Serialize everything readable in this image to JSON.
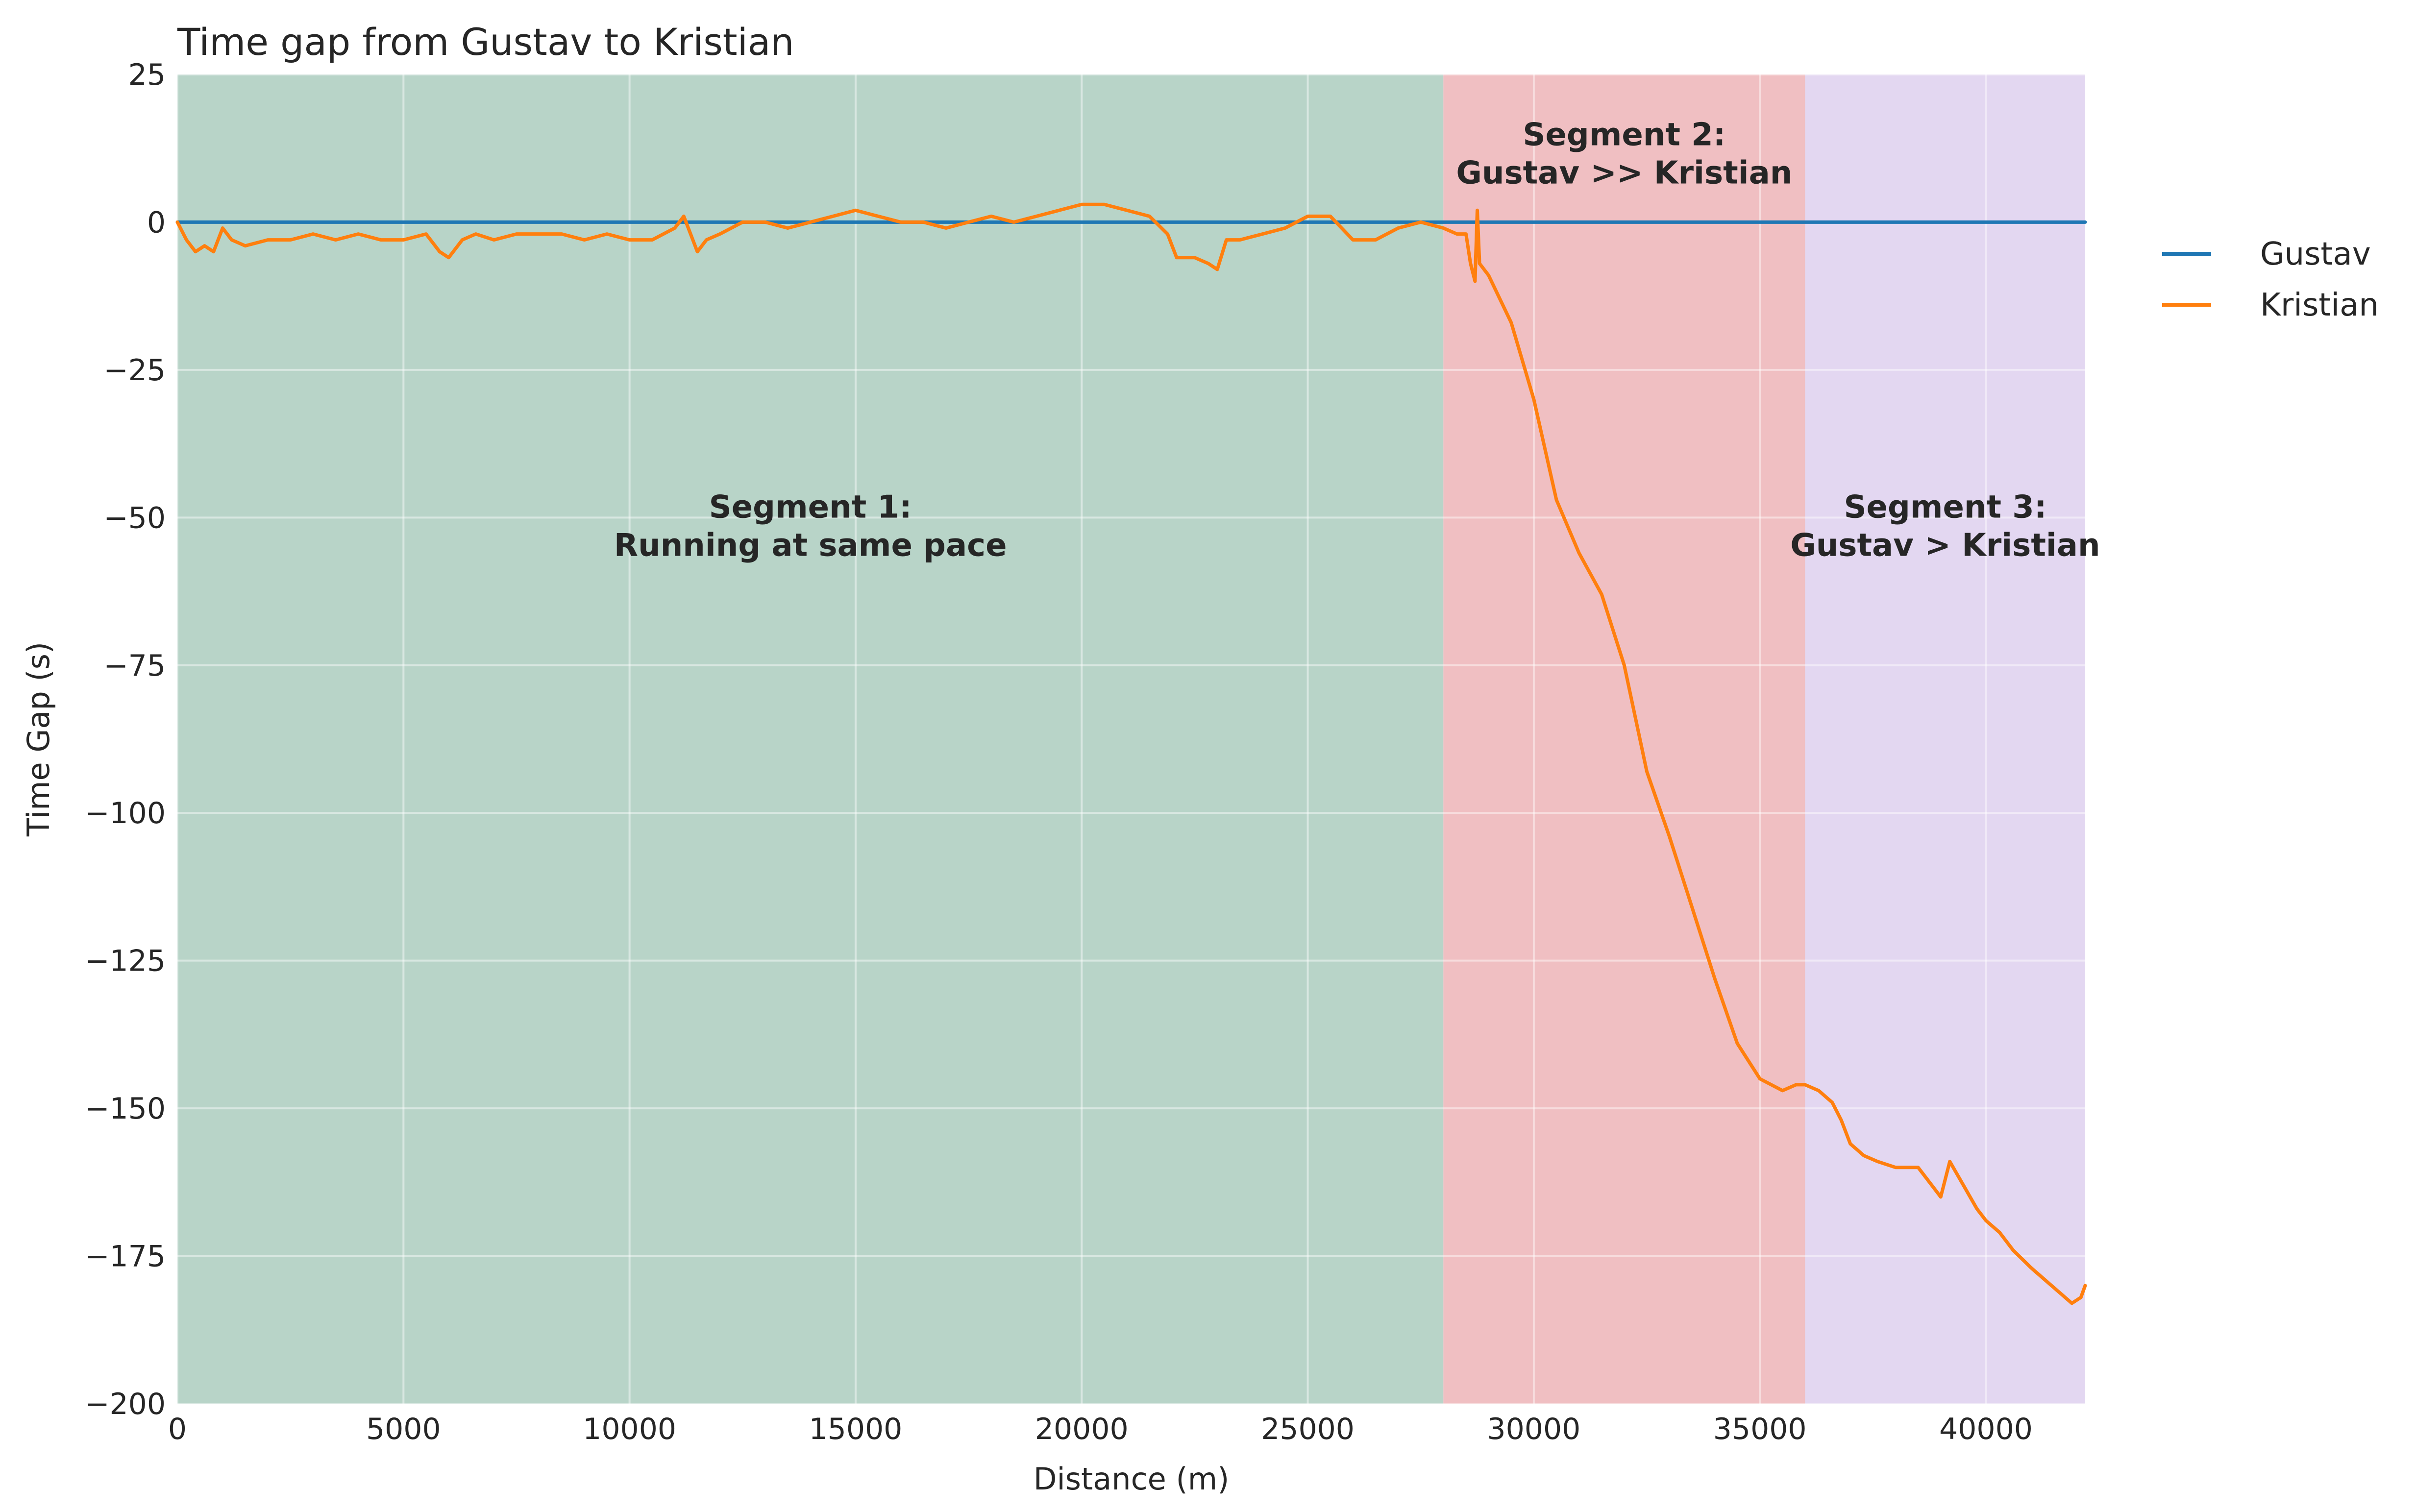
{
  "chart_data": {
    "type": "line",
    "title": "Time gap from Gustav to Kristian",
    "xlabel": "Distance (m)",
    "ylabel": "Time Gap (s)",
    "xlim": [
      0,
      42195
    ],
    "ylim": [
      -200,
      25
    ],
    "xticks": [
      0,
      5000,
      10000,
      15000,
      20000,
      25000,
      30000,
      35000,
      40000
    ],
    "xtick_labels": [
      "0",
      "5000",
      "10000",
      "15000",
      "20000",
      "25000",
      "30000",
      "35000",
      "40000"
    ],
    "yticks": [
      25,
      0,
      -25,
      -50,
      -75,
      -100,
      -125,
      -150,
      -175,
      -200
    ],
    "ytick_labels": [
      "25",
      "0",
      "−25",
      "−50",
      "−75",
      "−100",
      "−125",
      "−150",
      "−175",
      "−200"
    ],
    "grid": true,
    "legend_position": "outside-right",
    "segments": [
      {
        "start": 0,
        "end": 28000,
        "color": "#b8d4c8",
        "label_lines": [
          "Segment 1:",
          "Running at same pace"
        ],
        "label_x": 14000,
        "label_y": -50
      },
      {
        "start": 28000,
        "end": 36000,
        "color": "#f0bfc2",
        "label_lines": [
          "Segment 2:",
          "Gustav >> Kristian"
        ],
        "label_x": 32000,
        "label_y": 13
      },
      {
        "start": 36000,
        "end": 42195,
        "color": "#e3d7f1",
        "label_lines": [
          "Segment 3:",
          "Gustav > Kristian"
        ],
        "label_x": 39100,
        "label_y": -50
      }
    ],
    "series": [
      {
        "name": "Gustav",
        "color": "#1f77b4",
        "x": [
          0,
          42195
        ],
        "y": [
          0,
          0
        ]
      },
      {
        "name": "Kristian",
        "color": "#ff7f0e",
        "x": [
          0,
          200,
          400,
          600,
          800,
          1000,
          1200,
          1500,
          2000,
          2500,
          3000,
          3500,
          4000,
          4500,
          5000,
          5500,
          5800,
          6000,
          6300,
          6600,
          7000,
          7500,
          8000,
          8500,
          9000,
          9500,
          10000,
          10500,
          11000,
          11200,
          11400,
          11500,
          11700,
          12000,
          12500,
          13000,
          13500,
          14000,
          14500,
          15000,
          15500,
          16000,
          16500,
          17000,
          17500,
          18000,
          18500,
          19000,
          19500,
          20000,
          20500,
          21000,
          21500,
          21900,
          22100,
          22500,
          22800,
          23000,
          23200,
          23500,
          24000,
          24500,
          25000,
          25500,
          26000,
          26500,
          27000,
          27500,
          28000,
          28300,
          28500,
          28600,
          28700,
          28750,
          28800,
          29000,
          29500,
          30000,
          30500,
          31000,
          31500,
          32000,
          32500,
          33000,
          33500,
          34000,
          34500,
          35000,
          35500,
          35800,
          36000,
          36300,
          36600,
          36800,
          37000,
          37300,
          37600,
          38000,
          38500,
          38800,
          39000,
          39200,
          39500,
          39800,
          40000,
          40300,
          40600,
          41000,
          41300,
          41600,
          41900,
          42100,
          42195
        ],
        "y": [
          0,
          -3,
          -5,
          -4,
          -5,
          -1,
          -3,
          -4,
          -3,
          -3,
          -2,
          -3,
          -2,
          -3,
          -3,
          -2,
          -5,
          -6,
          -3,
          -2,
          -3,
          -2,
          -2,
          -2,
          -3,
          -2,
          -3,
          -3,
          -1,
          1,
          -3,
          -5,
          -3,
          -2,
          0,
          0,
          -1,
          0,
          1,
          2,
          1,
          0,
          0,
          -1,
          0,
          1,
          0,
          1,
          2,
          3,
          3,
          2,
          1,
          -2,
          -6,
          -6,
          -7,
          -8,
          -3,
          -3,
          -2,
          -1,
          1,
          1,
          -3,
          -3,
          -1,
          0,
          -1,
          -2,
          -2,
          -7,
          -10,
          2,
          -7,
          -9,
          -17,
          -30,
          -47,
          -56,
          -63,
          -75,
          -93,
          -104,
          -116,
          -128,
          -139,
          -145,
          -147,
          -146,
          -146,
          -147,
          -149,
          -152,
          -156,
          -158,
          -159,
          -160,
          -160,
          -163,
          -165,
          -159,
          -163,
          -167,
          -169,
          -171,
          -174,
          -177,
          -179,
          -181,
          -183,
          -182,
          -180
        ]
      }
    ],
    "legend": [
      "Gustav",
      "Kristian"
    ]
  }
}
